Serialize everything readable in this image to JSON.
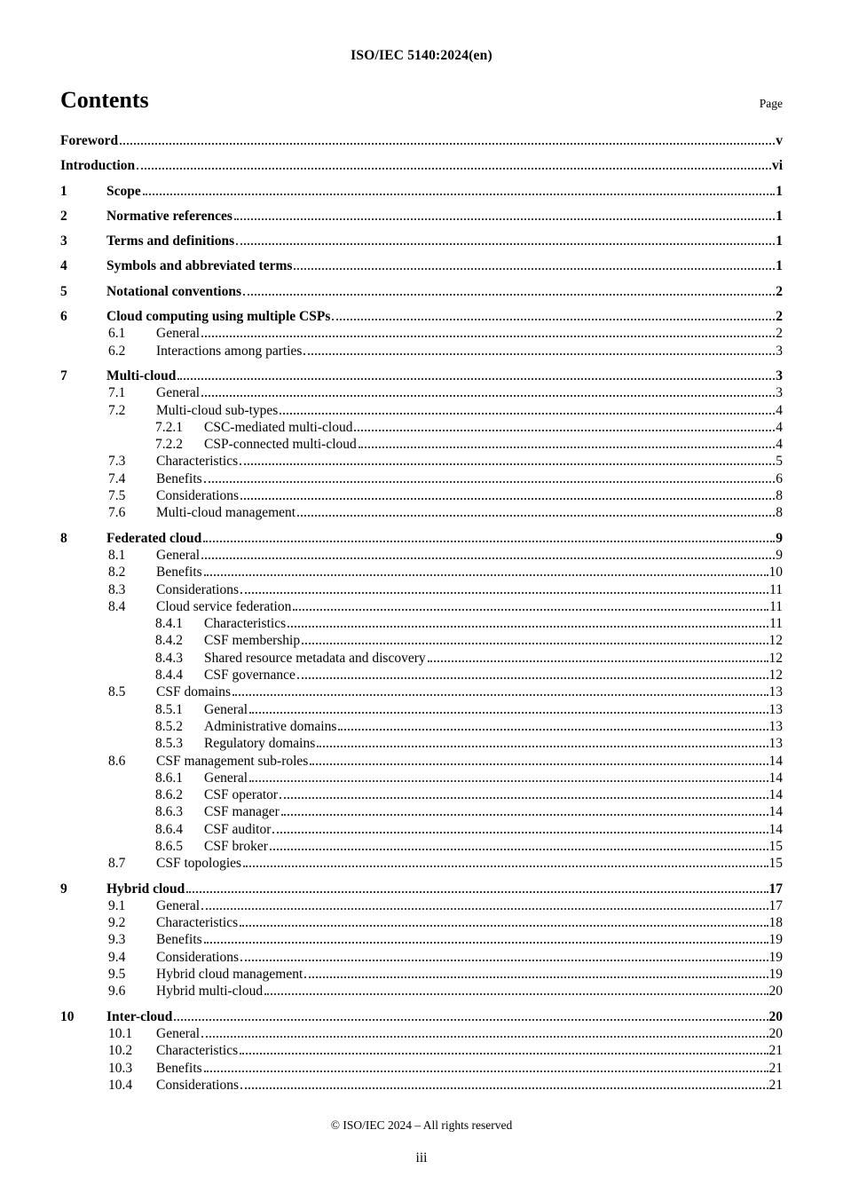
{
  "header": {
    "doc_id": "ISO/IEC 5140:2024(en)"
  },
  "contents": {
    "title": "Contents",
    "page_label": "Page"
  },
  "toc": [
    {
      "level": 0,
      "num": "",
      "title": "Foreword",
      "page": "v",
      "bold": true
    },
    {
      "level": 0,
      "num": "",
      "title": "Introduction",
      "page": "vi",
      "bold": true
    },
    {
      "level": 1,
      "num": "1",
      "title": "Scope",
      "page": "1",
      "bold": true
    },
    {
      "level": 1,
      "num": "2",
      "title": "Normative references",
      "page": "1",
      "bold": true
    },
    {
      "level": 1,
      "num": "3",
      "title": "Terms and definitions",
      "page": "1",
      "bold": true
    },
    {
      "level": 1,
      "num": "4",
      "title": "Symbols and abbreviated terms",
      "page": "1",
      "bold": true
    },
    {
      "level": 1,
      "num": "5",
      "title": "Notational conventions",
      "page": "2",
      "bold": true
    },
    {
      "level": 1,
      "num": "6",
      "title": "Cloud computing using multiple CSPs",
      "page": "2",
      "bold": true
    },
    {
      "level": 2,
      "num": "6.1",
      "title": "General",
      "page": "2",
      "bold": false
    },
    {
      "level": 2,
      "num": "6.2",
      "title": "Interactions among parties",
      "page": "3",
      "bold": false
    },
    {
      "level": 1,
      "num": "7",
      "title": "Multi-cloud",
      "page": "3",
      "bold": true
    },
    {
      "level": 2,
      "num": "7.1",
      "title": "General",
      "page": "3",
      "bold": false
    },
    {
      "level": 2,
      "num": "7.2",
      "title": "Multi-cloud sub-types",
      "page": "4",
      "bold": false
    },
    {
      "level": 3,
      "num": "7.2.1",
      "title": "CSC-mediated multi-cloud",
      "page": "4",
      "bold": false
    },
    {
      "level": 3,
      "num": "7.2.2",
      "title": "CSP-connected multi-cloud",
      "page": "4",
      "bold": false
    },
    {
      "level": 2,
      "num": "7.3",
      "title": "Characteristics",
      "page": "5",
      "bold": false
    },
    {
      "level": 2,
      "num": "7.4",
      "title": "Benefits",
      "page": "6",
      "bold": false
    },
    {
      "level": 2,
      "num": "7.5",
      "title": "Considerations",
      "page": "8",
      "bold": false
    },
    {
      "level": 2,
      "num": "7.6",
      "title": "Multi-cloud management",
      "page": "8",
      "bold": false
    },
    {
      "level": 1,
      "num": "8",
      "title": "Federated cloud",
      "page": "9",
      "bold": true
    },
    {
      "level": 2,
      "num": "8.1",
      "title": "General",
      "page": "9",
      "bold": false
    },
    {
      "level": 2,
      "num": "8.2",
      "title": "Benefits",
      "page": "10",
      "bold": false
    },
    {
      "level": 2,
      "num": "8.3",
      "title": "Considerations",
      "page": "11",
      "bold": false
    },
    {
      "level": 2,
      "num": "8.4",
      "title": "Cloud service federation",
      "page": "11",
      "bold": false
    },
    {
      "level": 3,
      "num": "8.4.1",
      "title": "Characteristics",
      "page": "11",
      "bold": false
    },
    {
      "level": 3,
      "num": "8.4.2",
      "title": "CSF membership",
      "page": "12",
      "bold": false
    },
    {
      "level": 3,
      "num": "8.4.3",
      "title": "Shared resource metadata and discovery",
      "page": "12",
      "bold": false
    },
    {
      "level": 3,
      "num": "8.4.4",
      "title": "CSF governance",
      "page": "12",
      "bold": false
    },
    {
      "level": 2,
      "num": "8.5",
      "title": "CSF domains",
      "page": "13",
      "bold": false
    },
    {
      "level": 3,
      "num": "8.5.1",
      "title": "General",
      "page": "13",
      "bold": false
    },
    {
      "level": 3,
      "num": "8.5.2",
      "title": "Administrative domains",
      "page": "13",
      "bold": false
    },
    {
      "level": 3,
      "num": "8.5.3",
      "title": "Regulatory domains",
      "page": "13",
      "bold": false
    },
    {
      "level": 2,
      "num": "8.6",
      "title": "CSF management sub-roles",
      "page": "14",
      "bold": false
    },
    {
      "level": 3,
      "num": "8.6.1",
      "title": "General",
      "page": "14",
      "bold": false
    },
    {
      "level": 3,
      "num": "8.6.2",
      "title": "CSF operator",
      "page": "14",
      "bold": false
    },
    {
      "level": 3,
      "num": "8.6.3",
      "title": "CSF manager",
      "page": "14",
      "bold": false
    },
    {
      "level": 3,
      "num": "8.6.4",
      "title": "CSF auditor",
      "page": "14",
      "bold": false
    },
    {
      "level": 3,
      "num": "8.6.5",
      "title": "CSF broker",
      "page": "15",
      "bold": false
    },
    {
      "level": 2,
      "num": "8.7",
      "title": "CSF topologies",
      "page": "15",
      "bold": false
    },
    {
      "level": 1,
      "num": "9",
      "title": "Hybrid cloud",
      "page": "17",
      "bold": true
    },
    {
      "level": 2,
      "num": "9.1",
      "title": "General",
      "page": "17",
      "bold": false
    },
    {
      "level": 2,
      "num": "9.2",
      "title": "Characteristics",
      "page": "18",
      "bold": false
    },
    {
      "level": 2,
      "num": "9.3",
      "title": "Benefits",
      "page": "19",
      "bold": false
    },
    {
      "level": 2,
      "num": "9.4",
      "title": "Considerations",
      "page": "19",
      "bold": false
    },
    {
      "level": 2,
      "num": "9.5",
      "title": "Hybrid cloud management",
      "page": "19",
      "bold": false
    },
    {
      "level": 2,
      "num": "9.6",
      "title": "Hybrid multi-cloud",
      "page": "20",
      "bold": false
    },
    {
      "level": 1,
      "num": "10",
      "title": "Inter-cloud",
      "page": "20",
      "bold": true
    },
    {
      "level": 2,
      "num": "10.1",
      "title": "General",
      "page": "20",
      "bold": false
    },
    {
      "level": 2,
      "num": "10.2",
      "title": "Characteristics",
      "page": "21",
      "bold": false
    },
    {
      "level": 2,
      "num": "10.3",
      "title": "Benefits",
      "page": "21",
      "bold": false
    },
    {
      "level": 2,
      "num": "10.4",
      "title": "Considerations",
      "page": "21",
      "bold": false
    }
  ],
  "footer": {
    "copyright": "© ISO/IEC 2024 – All rights reserved",
    "page_number": "iii"
  }
}
